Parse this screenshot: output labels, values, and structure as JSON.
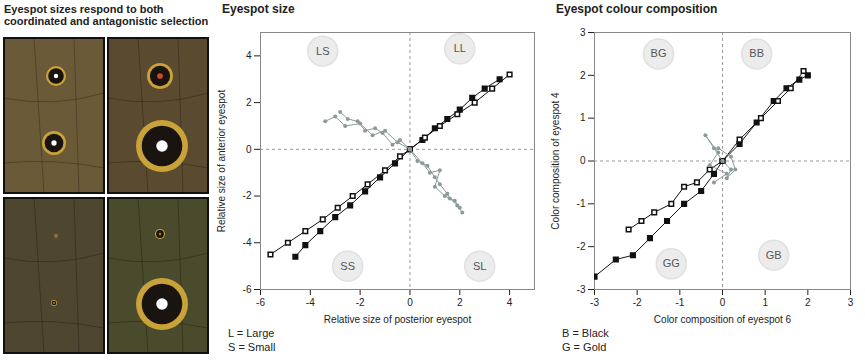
{
  "image_panel": {
    "title": "Eyespot sizes respond to both coordinated and antagonistic selection"
  },
  "chart_data": [
    {
      "type": "line",
      "title": "Eyespot size",
      "x_label": "Relative size of posterior eyespot",
      "y_label": "Relative size of anterior eyespot",
      "xlim": [
        -6,
        5
      ],
      "ylim": [
        -6,
        5
      ],
      "xticks": [
        -6,
        -4,
        -2,
        0,
        2,
        4
      ],
      "yticks": [
        -6,
        -4,
        -2,
        0,
        2,
        4
      ],
      "reference_lines": {
        "x": [
          0
        ],
        "y": [
          0
        ]
      },
      "annotations": [
        {
          "text": "LS",
          "x": -3.5,
          "y": 4.2
        },
        {
          "text": "LL",
          "x": 2.0,
          "y": 4.3
        },
        {
          "text": "SS",
          "x": -2.5,
          "y": -5.0
        },
        {
          "text": "SL",
          "x": 2.8,
          "y": -5.0
        }
      ],
      "notes": [
        "L = Large",
        "S = Small"
      ],
      "series": [
        {
          "color": "#111111",
          "marker": "square",
          "x": [
            -4.6,
            -4.2,
            -3.6,
            -3.0,
            -2.4,
            -1.8,
            -1.2,
            -0.6,
            0,
            0.5,
            1.0,
            1.5,
            2.0,
            2.5,
            3.0,
            3.6
          ],
          "y": [
            -4.6,
            -4.1,
            -3.5,
            -2.9,
            -2.4,
            -1.8,
            -1.2,
            -0.6,
            0,
            0.4,
            0.9,
            1.3,
            1.7,
            2.2,
            2.6,
            3.0
          ]
        },
        {
          "color": "#111111",
          "marker": "square-open",
          "x": [
            -5.6,
            -4.9,
            -4.2,
            -3.5,
            -2.9,
            -2.3,
            -1.7,
            -1.0,
            -0.4,
            0,
            0.6,
            1.2,
            1.9,
            2.6,
            3.3,
            4.0
          ],
          "y": [
            -4.5,
            -4.0,
            -3.5,
            -3.0,
            -2.5,
            -2.0,
            -1.5,
            -0.9,
            -0.3,
            0,
            0.5,
            1.0,
            1.5,
            2.0,
            2.6,
            3.2
          ]
        },
        {
          "color": "#8c9a9a",
          "marker": "circle",
          "x": [
            0,
            -0.4,
            -0.7,
            -1.1,
            -1.4,
            -1.8,
            -2.1,
            -2.5,
            -2.8
          ],
          "y": [
            0,
            0.4,
            0.2,
            0.7,
            0.9,
            0.8,
            1.2,
            1.3,
            1.6
          ]
        },
        {
          "color": "#8c9a9a",
          "marker": "circle",
          "x": [
            0,
            -0.5,
            -1.0,
            -1.5,
            -2.0,
            -2.6,
            -3.0,
            -3.4
          ],
          "y": [
            0,
            0.3,
            0.8,
            0.6,
            1.1,
            1.0,
            1.4,
            1.2
          ]
        },
        {
          "color": "#8c9a9a",
          "marker": "circle",
          "x": [
            0,
            0.3,
            0.7,
            1.0,
            1.2,
            1.5,
            1.6,
            1.9,
            2.1
          ],
          "y": [
            0,
            -0.5,
            -0.7,
            -1.2,
            -1.5,
            -1.9,
            -2.1,
            -2.4,
            -2.7
          ]
        },
        {
          "color": "#8c9a9a",
          "marker": "circle",
          "x": [
            0,
            0.5,
            0.8,
            1.2,
            1.0,
            1.4,
            1.8,
            2.0
          ],
          "y": [
            0,
            -0.6,
            -1.0,
            -0.9,
            -1.6,
            -2.0,
            -2.2,
            -2.5
          ]
        }
      ]
    },
    {
      "type": "line",
      "title": "Eyespot colour composition",
      "x_label": "Color composition of eyespot 6",
      "y_label": "Color composition of eyespot 4",
      "xlim": [
        -3,
        3
      ],
      "ylim": [
        -3,
        3
      ],
      "xticks": [
        -3,
        -2,
        -1,
        0,
        1,
        2,
        3
      ],
      "yticks": [
        -3,
        -2,
        -1,
        0,
        1,
        2,
        3
      ],
      "reference_lines": {
        "x": [
          0
        ],
        "y": [
          0
        ]
      },
      "annotations": [
        {
          "text": "BG",
          "x": -1.5,
          "y": 2.5
        },
        {
          "text": "BB",
          "x": 0.8,
          "y": 2.5
        },
        {
          "text": "GG",
          "x": -1.2,
          "y": -2.4
        },
        {
          "text": "GB",
          "x": 1.2,
          "y": -2.2
        }
      ],
      "notes": [
        "B = Black",
        "G = Gold"
      ],
      "series": [
        {
          "color": "#111111",
          "marker": "square",
          "x": [
            -3.0,
            -2.5,
            -2.1,
            -1.7,
            -1.3,
            -0.9,
            -0.5,
            -0.2,
            0,
            0.4,
            0.8,
            1.2,
            1.5,
            1.8,
            2.0
          ],
          "y": [
            -2.7,
            -2.3,
            -2.2,
            -1.8,
            -1.4,
            -1.0,
            -0.7,
            -0.3,
            0,
            0.4,
            0.9,
            1.4,
            1.7,
            1.9,
            2.0
          ]
        },
        {
          "color": "#111111",
          "marker": "square-open",
          "x": [
            -2.2,
            -1.9,
            -1.6,
            -1.2,
            -0.9,
            -0.6,
            -0.3,
            0,
            0.4,
            0.9,
            1.3,
            1.6,
            1.9
          ],
          "y": [
            -1.6,
            -1.4,
            -1.2,
            -1.0,
            -0.6,
            -0.5,
            -0.2,
            0,
            0.5,
            1.0,
            1.4,
            1.7,
            2.1
          ]
        },
        {
          "color": "#8c9a9a",
          "marker": "circle",
          "x": [
            0,
            -0.2,
            -0.4,
            -0.1,
            -0.3,
            0.1,
            -0.2
          ],
          "y": [
            0,
            0.3,
            0.6,
            0.2,
            -0.1,
            -0.3,
            -0.5
          ]
        },
        {
          "color": "#8c9a9a",
          "marker": "circle",
          "x": [
            0,
            0.2,
            0.1,
            0.3,
            0.2,
            -0.1
          ],
          "y": [
            0,
            -0.2,
            -0.4,
            -0.2,
            0.1,
            0.3
          ]
        }
      ]
    }
  ]
}
